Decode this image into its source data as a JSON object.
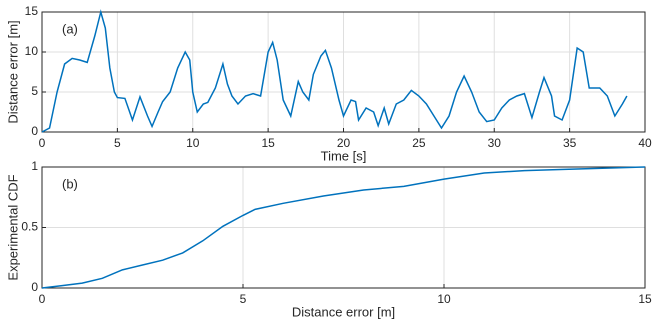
{
  "chart_data": [
    {
      "type": "line",
      "annotation": "(a)",
      "xlabel": "Time [s]",
      "ylabel": "Distance error [m]",
      "xlim": [
        0,
        40
      ],
      "ylim": [
        0,
        15
      ],
      "xticks": [
        0,
        5,
        10,
        15,
        20,
        25,
        30,
        35,
        40
      ],
      "yticks": [
        0,
        5,
        10,
        15
      ],
      "grid": true,
      "x": [
        0,
        0.5,
        1,
        1.5,
        2,
        2.5,
        3,
        3.5,
        3.9,
        4.2,
        4.5,
        4.8,
        5,
        5.5,
        6,
        6.5,
        7,
        7.3,
        7.7,
        8,
        8.5,
        9,
        9.5,
        9.8,
        10,
        10.3,
        10.7,
        11,
        11.5,
        12,
        12.3,
        12.6,
        13,
        13.5,
        14,
        14.5,
        15,
        15.3,
        15.6,
        16,
        16.5,
        17,
        17.3,
        17.7,
        18,
        18.5,
        18.8,
        19.2,
        19.7,
        20,
        20.5,
        20.8,
        21,
        21.5,
        22,
        22.3,
        22.7,
        23,
        23.5,
        24,
        24.5,
        25,
        25.5,
        26,
        26.5,
        27,
        27.5,
        28,
        28.5,
        29,
        29.5,
        30,
        30.5,
        31,
        31.5,
        32,
        32.5,
        33,
        33.3,
        33.8,
        34,
        34.5,
        35,
        35.5,
        35.9,
        36.3,
        37,
        37.5,
        38,
        38.5,
        38.8
      ],
      "series": [
        {
          "color": "#0072bd",
          "values": [
            0,
            0.5,
            5,
            8.5,
            9.2,
            9,
            8.7,
            12,
            15,
            13,
            8,
            5,
            4.3,
            4.2,
            1.5,
            4.4,
            2,
            0.7,
            2.5,
            3.8,
            5,
            8,
            10,
            9,
            5,
            2.5,
            3.5,
            3.7,
            5.5,
            8.5,
            6,
            4.5,
            3.5,
            4.5,
            4.8,
            4.5,
            10,
            11.2,
            9,
            4,
            2,
            6.3,
            5,
            4,
            7.2,
            9.5,
            10.2,
            8,
            4,
            2,
            4,
            3.8,
            1.5,
            3,
            2.5,
            0.8,
            3,
            1,
            3.5,
            4,
            5.2,
            4.5,
            3.5,
            2,
            0.5,
            2,
            5,
            7,
            5,
            2.5,
            1.3,
            1.5,
            3,
            4,
            4.5,
            4.8,
            1.8,
            5,
            6.8,
            4.5,
            2,
            1.5,
            4,
            10.5,
            10,
            5.5,
            5.5,
            4.5,
            2,
            3.5,
            4.5
          ]
        }
      ]
    },
    {
      "type": "line",
      "annotation": "(b)",
      "xlabel": "Distance error [m]",
      "ylabel": "Experimental CDF",
      "xlim": [
        0,
        15
      ],
      "ylim": [
        0,
        1
      ],
      "xticks": [
        0,
        5,
        10,
        15
      ],
      "yticks": [
        0,
        0.5,
        1
      ],
      "grid": true,
      "x": [
        0,
        0.5,
        1,
        1.5,
        2,
        2.5,
        3,
        3.5,
        4,
        4.5,
        5,
        5.3,
        6,
        7,
        8,
        9,
        10,
        11,
        12,
        13,
        15
      ],
      "series": [
        {
          "color": "#0072bd",
          "values": [
            0,
            0.02,
            0.04,
            0.08,
            0.15,
            0.19,
            0.23,
            0.29,
            0.39,
            0.51,
            0.6,
            0.65,
            0.7,
            0.76,
            0.81,
            0.84,
            0.9,
            0.95,
            0.97,
            0.98,
            1
          ]
        }
      ]
    }
  ]
}
